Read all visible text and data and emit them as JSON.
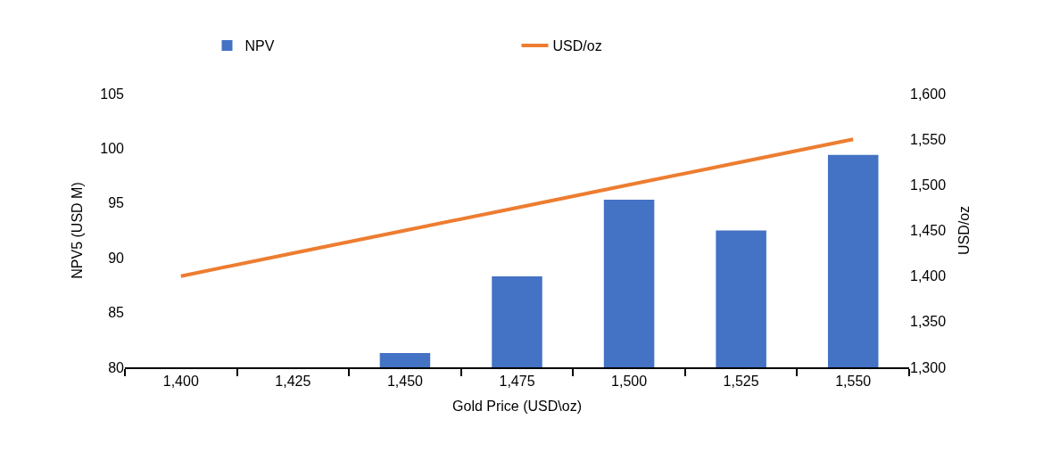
{
  "chart_data": {
    "type": "bar",
    "categories": [
      "1,400",
      "1,425",
      "1,450",
      "1,475",
      "1,500",
      "1,525",
      "1,550"
    ],
    "series": [
      {
        "name": "NPV",
        "color": "#4472c4",
        "values": [
          80,
          80,
          81.3,
          88.3,
          95.3,
          92.5,
          99.4
        ]
      },
      {
        "name": "USD/oz",
        "type": "line",
        "axis": "y2",
        "color": "#ed7d31",
        "values": [
          1400,
          1425,
          1450,
          1475,
          1500,
          1525,
          1550
        ]
      }
    ],
    "xlabel": "Gold Price (USD\\oz)",
    "ylabel": "NPV5 (USD M)",
    "y2label": "USD/oz",
    "ylim": [
      80,
      105
    ],
    "yticks": [
      80,
      85,
      90,
      95,
      100,
      105
    ],
    "y2lim": [
      1300,
      1600
    ],
    "y2ticks": [
      {
        "value": 1300,
        "label": "1,300"
      },
      {
        "value": 1350,
        "label": "1,350"
      },
      {
        "value": 1400,
        "label": "1,400"
      },
      {
        "value": 1450,
        "label": "1,450"
      },
      {
        "value": 1500,
        "label": "1,500"
      },
      {
        "value": 1550,
        "label": "1,550"
      },
      {
        "value": 1600,
        "label": "1,600"
      }
    ],
    "legend": "top",
    "marker": "none"
  }
}
